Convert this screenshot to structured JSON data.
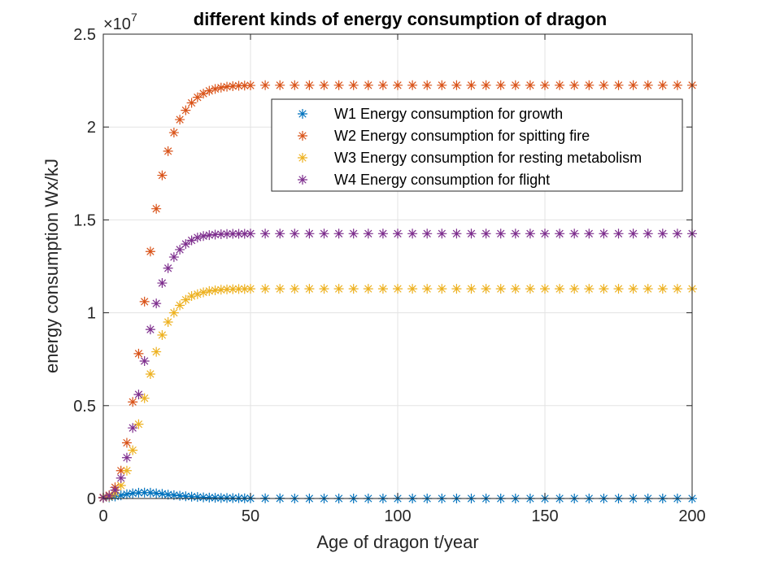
{
  "chart_data": {
    "type": "scatter",
    "title": "different kinds of energy consumption of dragon",
    "xlabel": "Age of dragon  t/year",
    "ylabel": "energy consumption Wx/kJ",
    "exponent_base": "×10",
    "exponent_power": "7",
    "xlim": [
      0,
      200
    ],
    "ylim": [
      0,
      2.5
    ],
    "y_scale_factor": 10000000,
    "xticks": [
      0,
      50,
      100,
      150,
      200
    ],
    "xtick_labels": [
      "0",
      "50",
      "100",
      "150",
      "200"
    ],
    "yticks": [
      0,
      0.5,
      1,
      1.5,
      2,
      2.5
    ],
    "ytick_labels": [
      "0",
      "0.5",
      "1",
      "1.5",
      "2",
      "2.5"
    ],
    "grid": true,
    "legend_position": "top-right",
    "marker": "*",
    "x": [
      0,
      2,
      4,
      6,
      8,
      10,
      12,
      14,
      16,
      18,
      20,
      22,
      24,
      26,
      28,
      30,
      32,
      34,
      36,
      38,
      40,
      42,
      44,
      46,
      48,
      50,
      55,
      60,
      65,
      70,
      75,
      80,
      85,
      90,
      95,
      100,
      105,
      110,
      115,
      120,
      125,
      130,
      135,
      140,
      145,
      150,
      155,
      160,
      165,
      170,
      175,
      180,
      185,
      190,
      195,
      200
    ],
    "series": [
      {
        "name": "W1 Energy consumption for growth",
        "color": "#0072BD",
        "values": [
          0.003,
          0.006,
          0.011,
          0.017,
          0.023,
          0.028,
          0.031,
          0.032,
          0.031,
          0.028,
          0.025,
          0.021,
          0.018,
          0.015,
          0.012,
          0.01,
          0.008,
          0.006,
          0.005,
          0.004,
          0.003,
          0.003,
          0.002,
          0.002,
          0.001,
          0.001,
          0.001,
          0.001,
          0.0,
          0.0,
          0.0,
          0.0,
          0.0,
          0.0,
          0.0,
          0.0,
          0.0,
          0.0,
          0.0,
          0.0,
          0.0,
          0.0,
          0.0,
          0.0,
          0.0,
          0.0,
          0.0,
          0.0,
          0.0,
          0.0,
          0.0,
          0.0,
          0.0,
          0.0,
          0.0,
          0.0
        ]
      },
      {
        "name": "W2 Energy consumption for spitting fire",
        "color": "#D95319",
        "values": [
          0.006,
          0.018,
          0.06,
          0.15,
          0.3,
          0.52,
          0.78,
          1.06,
          1.33,
          1.56,
          1.74,
          1.87,
          1.97,
          2.04,
          2.09,
          2.13,
          2.16,
          2.18,
          2.195,
          2.205,
          2.212,
          2.217,
          2.22,
          2.222,
          2.223,
          2.224,
          2.225,
          2.225,
          2.225,
          2.225,
          2.225,
          2.225,
          2.225,
          2.225,
          2.225,
          2.225,
          2.225,
          2.225,
          2.225,
          2.225,
          2.225,
          2.225,
          2.225,
          2.225,
          2.225,
          2.225,
          2.225,
          2.225,
          2.225,
          2.225,
          2.225,
          2.225,
          2.225,
          2.225,
          2.225,
          2.225
        ]
      },
      {
        "name": "W3 Energy consumption for resting metabolism",
        "color": "#EDB120",
        "values": [
          0.003,
          0.01,
          0.03,
          0.07,
          0.15,
          0.26,
          0.4,
          0.54,
          0.67,
          0.79,
          0.88,
          0.95,
          1.0,
          1.04,
          1.07,
          1.09,
          1.1,
          1.11,
          1.117,
          1.121,
          1.124,
          1.126,
          1.127,
          1.128,
          1.128,
          1.129,
          1.129,
          1.129,
          1.129,
          1.129,
          1.129,
          1.129,
          1.129,
          1.129,
          1.129,
          1.129,
          1.129,
          1.129,
          1.129,
          1.129,
          1.129,
          1.129,
          1.129,
          1.129,
          1.129,
          1.129,
          1.129,
          1.129,
          1.129,
          1.129,
          1.129,
          1.129,
          1.129,
          1.129,
          1.129,
          1.129
        ]
      },
      {
        "name": "W4 Energy consumption for flight",
        "color": "#7E2F8E",
        "values": [
          0.004,
          0.014,
          0.045,
          0.11,
          0.22,
          0.38,
          0.56,
          0.74,
          0.91,
          1.05,
          1.16,
          1.24,
          1.3,
          1.34,
          1.37,
          1.39,
          1.405,
          1.413,
          1.418,
          1.421,
          1.423,
          1.424,
          1.425,
          1.425,
          1.425,
          1.426,
          1.426,
          1.426,
          1.426,
          1.426,
          1.426,
          1.426,
          1.426,
          1.426,
          1.426,
          1.426,
          1.426,
          1.426,
          1.426,
          1.426,
          1.426,
          1.426,
          1.426,
          1.426,
          1.426,
          1.426,
          1.426,
          1.426,
          1.426,
          1.426,
          1.426,
          1.426,
          1.426,
          1.426,
          1.426,
          1.426
        ]
      }
    ]
  }
}
